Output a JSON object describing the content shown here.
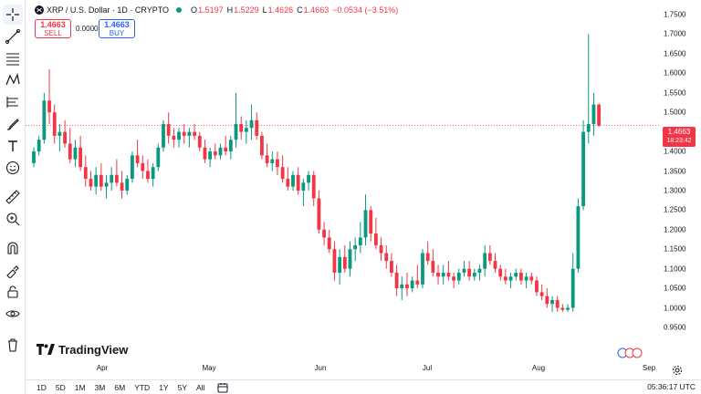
{
  "header": {
    "symbol": "XRP / U.S. Dollar · 1D · CRYPTO",
    "open_label": "O",
    "open": "1.5197",
    "high_label": "H",
    "high": "1.5229",
    "low_label": "L",
    "low": "1.4626",
    "close_label": "C",
    "close": "1.4663",
    "change": "−0.0534 (−3.51%)",
    "market_status_color": "#089981"
  },
  "trade": {
    "sell_price": "1.4663",
    "sell_label": "SELL",
    "spread": "0.0000",
    "buy_price": "1.4663",
    "buy_label": "BUY"
  },
  "price_axis": {
    "ticks": [
      "1.7500",
      "1.7000",
      "1.6500",
      "1.6000",
      "1.5500",
      "1.5000",
      "1.4500",
      "1.4000",
      "1.3500",
      "1.3000",
      "1.2500",
      "1.2000",
      "1.1500",
      "1.1000",
      "1.0500",
      "1.0000",
      "0.9500"
    ],
    "last_price": "1.4663",
    "countdown": "18:23:42"
  },
  "time_axis": {
    "ticks": [
      "Apr",
      "May",
      "Jun",
      "Jul",
      "Aug",
      "Sep"
    ]
  },
  "ranges": [
    "1D",
    "5D",
    "1M",
    "3M",
    "6M",
    "YTD",
    "1Y",
    "5Y",
    "All"
  ],
  "clock": "05:36:17 UTC",
  "brand": "TradingView",
  "colors": {
    "up": "#089981",
    "down": "#f23645",
    "last_price_line": "#f23645"
  },
  "toolbar_icons": [
    "crosshair-icon",
    "trend-line-icon",
    "fib-icon",
    "pattern-icon",
    "projection-icon",
    "brush-icon",
    "text-icon",
    "emoji-icon",
    "ruler-icon",
    "zoom-in-icon",
    "magnet-icon",
    "lock-drawings-icon",
    "lock-icon",
    "eye-icon",
    "trash-icon"
  ],
  "chart_data": {
    "type": "candlestick",
    "ylim": [
      0.93,
      1.77
    ],
    "x_ticks": [
      "Apr",
      "May",
      "Jun",
      "Jul",
      "Aug",
      "Sep"
    ],
    "last_price": 1.4663,
    "candles": [
      [
        1.37,
        1.41,
        1.36,
        1.4
      ],
      [
        1.4,
        1.44,
        1.39,
        1.43
      ],
      [
        1.43,
        1.55,
        1.42,
        1.53
      ],
      [
        1.53,
        1.61,
        1.47,
        1.5
      ],
      [
        1.5,
        1.52,
        1.42,
        1.44
      ],
      [
        1.44,
        1.47,
        1.4,
        1.45
      ],
      [
        1.45,
        1.48,
        1.41,
        1.42
      ],
      [
        1.42,
        1.46,
        1.37,
        1.38
      ],
      [
        1.38,
        1.43,
        1.36,
        1.41
      ],
      [
        1.41,
        1.44,
        1.35,
        1.36
      ],
      [
        1.36,
        1.39,
        1.31,
        1.33
      ],
      [
        1.33,
        1.35,
        1.3,
        1.31
      ],
      [
        1.31,
        1.36,
        1.29,
        1.34
      ],
      [
        1.34,
        1.37,
        1.3,
        1.31
      ],
      [
        1.31,
        1.34,
        1.28,
        1.32
      ],
      [
        1.32,
        1.36,
        1.3,
        1.34
      ],
      [
        1.34,
        1.38,
        1.31,
        1.32
      ],
      [
        1.32,
        1.35,
        1.28,
        1.3
      ],
      [
        1.3,
        1.34,
        1.29,
        1.33
      ],
      [
        1.33,
        1.4,
        1.32,
        1.39
      ],
      [
        1.39,
        1.43,
        1.36,
        1.37
      ],
      [
        1.37,
        1.39,
        1.33,
        1.35
      ],
      [
        1.35,
        1.38,
        1.32,
        1.33
      ],
      [
        1.33,
        1.37,
        1.31,
        1.36
      ],
      [
        1.36,
        1.42,
        1.35,
        1.41
      ],
      [
        1.41,
        1.48,
        1.4,
        1.47
      ],
      [
        1.47,
        1.5,
        1.42,
        1.44
      ],
      [
        1.44,
        1.46,
        1.41,
        1.43
      ],
      [
        1.43,
        1.46,
        1.41,
        1.45
      ],
      [
        1.45,
        1.47,
        1.42,
        1.44
      ],
      [
        1.44,
        1.46,
        1.41,
        1.45
      ],
      [
        1.45,
        1.47,
        1.43,
        1.44
      ],
      [
        1.44,
        1.45,
        1.4,
        1.41
      ],
      [
        1.41,
        1.43,
        1.37,
        1.38
      ],
      [
        1.38,
        1.41,
        1.36,
        1.4
      ],
      [
        1.4,
        1.42,
        1.38,
        1.39
      ],
      [
        1.39,
        1.42,
        1.38,
        1.41
      ],
      [
        1.41,
        1.44,
        1.39,
        1.4
      ],
      [
        1.4,
        1.44,
        1.38,
        1.43
      ],
      [
        1.43,
        1.55,
        1.41,
        1.47
      ],
      [
        1.47,
        1.49,
        1.43,
        1.45
      ],
      [
        1.45,
        1.48,
        1.42,
        1.46
      ],
      [
        1.46,
        1.52,
        1.43,
        1.48
      ],
      [
        1.48,
        1.5,
        1.43,
        1.44
      ],
      [
        1.44,
        1.45,
        1.38,
        1.39
      ],
      [
        1.39,
        1.42,
        1.36,
        1.37
      ],
      [
        1.37,
        1.4,
        1.35,
        1.38
      ],
      [
        1.38,
        1.4,
        1.34,
        1.36
      ],
      [
        1.36,
        1.39,
        1.32,
        1.33
      ],
      [
        1.33,
        1.36,
        1.3,
        1.31
      ],
      [
        1.31,
        1.35,
        1.3,
        1.34
      ],
      [
        1.34,
        1.36,
        1.29,
        1.3
      ],
      [
        1.3,
        1.33,
        1.26,
        1.32
      ],
      [
        1.32,
        1.35,
        1.3,
        1.34
      ],
      [
        1.34,
        1.35,
        1.26,
        1.28
      ],
      [
        1.28,
        1.3,
        1.19,
        1.2
      ],
      [
        1.2,
        1.22,
        1.16,
        1.18
      ],
      [
        1.18,
        1.2,
        1.14,
        1.15
      ],
      [
        1.15,
        1.17,
        1.07,
        1.09
      ],
      [
        1.09,
        1.15,
        1.06,
        1.13
      ],
      [
        1.13,
        1.16,
        1.09,
        1.1
      ],
      [
        1.1,
        1.17,
        1.08,
        1.15
      ],
      [
        1.15,
        1.18,
        1.12,
        1.16
      ],
      [
        1.16,
        1.22,
        1.14,
        1.18
      ],
      [
        1.18,
        1.29,
        1.16,
        1.25
      ],
      [
        1.25,
        1.26,
        1.17,
        1.19
      ],
      [
        1.19,
        1.23,
        1.15,
        1.16
      ],
      [
        1.16,
        1.18,
        1.12,
        1.14
      ],
      [
        1.14,
        1.16,
        1.1,
        1.12
      ],
      [
        1.12,
        1.14,
        1.08,
        1.09
      ],
      [
        1.09,
        1.11,
        1.03,
        1.05
      ],
      [
        1.05,
        1.08,
        1.02,
        1.06
      ],
      [
        1.06,
        1.09,
        1.03,
        1.05
      ],
      [
        1.05,
        1.08,
        1.04,
        1.07
      ],
      [
        1.07,
        1.11,
        1.05,
        1.06
      ],
      [
        1.06,
        1.15,
        1.05,
        1.14
      ],
      [
        1.14,
        1.17,
        1.11,
        1.12
      ],
      [
        1.12,
        1.15,
        1.08,
        1.09
      ],
      [
        1.09,
        1.11,
        1.06,
        1.08
      ],
      [
        1.08,
        1.11,
        1.06,
        1.09
      ],
      [
        1.09,
        1.12,
        1.07,
        1.08
      ],
      [
        1.08,
        1.09,
        1.05,
        1.07
      ],
      [
        1.07,
        1.1,
        1.06,
        1.09
      ],
      [
        1.09,
        1.12,
        1.08,
        1.1
      ],
      [
        1.1,
        1.12,
        1.07,
        1.08
      ],
      [
        1.08,
        1.1,
        1.07,
        1.09
      ],
      [
        1.09,
        1.11,
        1.07,
        1.1
      ],
      [
        1.1,
        1.16,
        1.08,
        1.14
      ],
      [
        1.14,
        1.16,
        1.11,
        1.12
      ],
      [
        1.12,
        1.14,
        1.09,
        1.1
      ],
      [
        1.1,
        1.11,
        1.07,
        1.08
      ],
      [
        1.08,
        1.1,
        1.06,
        1.07
      ],
      [
        1.07,
        1.09,
        1.05,
        1.08
      ],
      [
        1.08,
        1.1,
        1.07,
        1.09
      ],
      [
        1.09,
        1.1,
        1.06,
        1.07
      ],
      [
        1.07,
        1.09,
        1.05,
        1.08
      ],
      [
        1.08,
        1.09,
        1.06,
        1.07
      ],
      [
        1.07,
        1.08,
        1.03,
        1.04
      ],
      [
        1.04,
        1.06,
        1.02,
        1.03
      ],
      [
        1.03,
        1.05,
        1.0,
        1.01
      ],
      [
        1.01,
        1.03,
        0.99,
        1.02
      ],
      [
        1.02,
        1.03,
        0.99,
        1.0
      ],
      [
        1.0,
        1.01,
        0.99,
        0.995
      ],
      [
        0.995,
        1.01,
        0.99,
        1.0
      ],
      [
        1.0,
        1.14,
        0.99,
        1.1
      ],
      [
        1.1,
        1.28,
        1.09,
        1.26
      ],
      [
        1.26,
        1.48,
        1.25,
        1.45
      ],
      [
        1.45,
        1.7,
        1.42,
        1.47
      ],
      [
        1.47,
        1.55,
        1.44,
        1.52
      ],
      [
        1.5197,
        1.5229,
        1.4626,
        1.4663
      ]
    ]
  }
}
